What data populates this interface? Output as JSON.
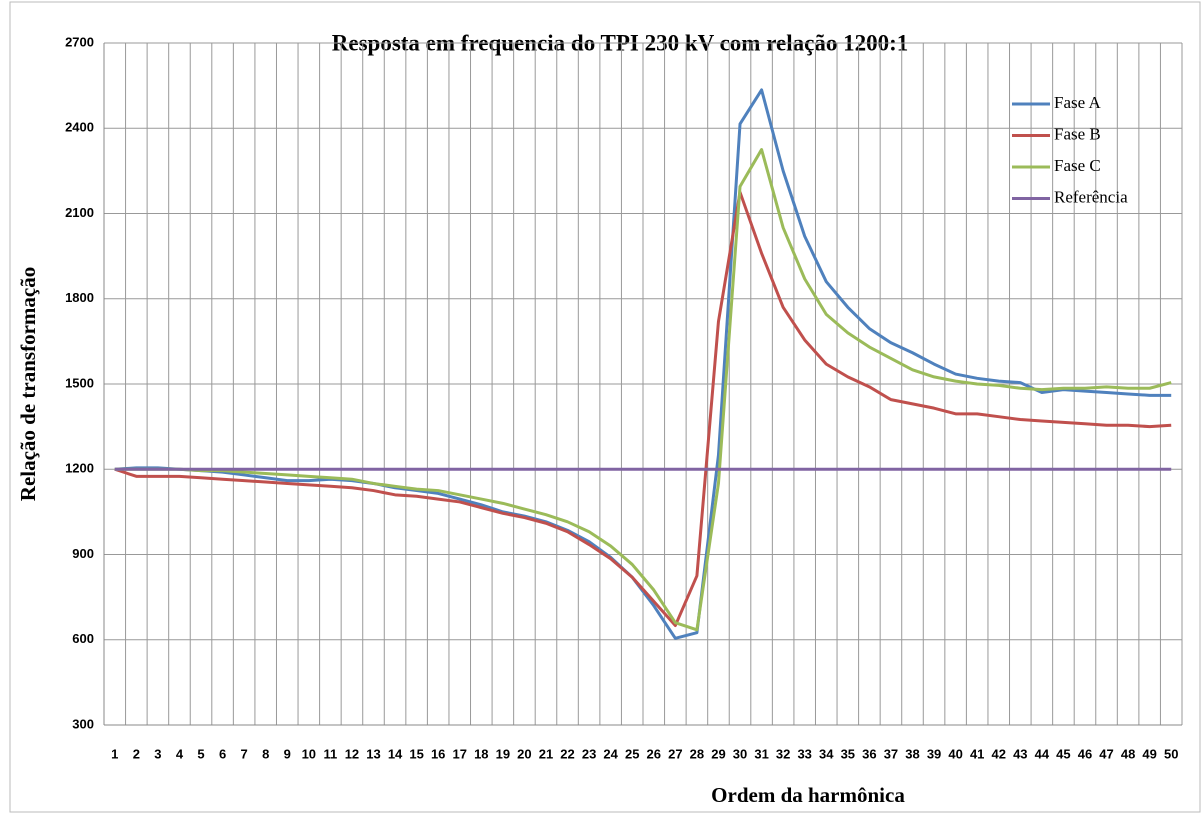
{
  "chart_data": {
    "type": "line",
    "title": "Resposta em frequencia do TPI 230 kV com relação 1200:1",
    "x_label": "Ordem da harmônica",
    "y_label": "Relação de transformação",
    "categories": [
      "1",
      "2",
      "3",
      "4",
      "5",
      "6",
      "7",
      "8",
      "9",
      "10",
      "11",
      "12",
      "13",
      "14",
      "15",
      "16",
      "17",
      "18",
      "19",
      "20",
      "21",
      "22",
      "23",
      "24",
      "25",
      "26",
      "27",
      "28",
      "29",
      "30",
      "31",
      "32",
      "33",
      "34",
      "35",
      "36",
      "37",
      "38",
      "39",
      "40",
      "41",
      "42",
      "43",
      "44",
      "45",
      "46",
      "47",
      "48",
      "49",
      "50"
    ],
    "ylim": [
      300,
      2700
    ],
    "yticks": [
      300,
      600,
      900,
      1200,
      1500,
      1800,
      2100,
      2400,
      2700
    ],
    "grid": true,
    "legend": "upper right",
    "series": [
      {
        "name": "Fase A",
        "color": "#4f81bd",
        "values": [
          1200,
          1205,
          1205,
          1200,
          1195,
          1190,
          1180,
          1170,
          1160,
          1160,
          1165,
          1160,
          1150,
          1135,
          1125,
          1115,
          1095,
          1075,
          1050,
          1035,
          1015,
          985,
          945,
          890,
          820,
          720,
          605,
          625,
          1250,
          2415,
          2535,
          2250,
          2020,
          1860,
          1770,
          1695,
          1645,
          1610,
          1570,
          1535,
          1520,
          1510,
          1505,
          1470,
          1480,
          1475,
          1470,
          1465,
          1460,
          1460
        ]
      },
      {
        "name": "Fase B",
        "color": "#c0504d",
        "values": [
          1200,
          1175,
          1175,
          1175,
          1170,
          1165,
          1160,
          1155,
          1150,
          1145,
          1140,
          1135,
          1125,
          1110,
          1105,
          1095,
          1085,
          1065,
          1045,
          1030,
          1010,
          980,
          935,
          885,
          820,
          735,
          650,
          825,
          1720,
          2175,
          1960,
          1770,
          1655,
          1570,
          1525,
          1490,
          1445,
          1430,
          1415,
          1395,
          1395,
          1385,
          1375,
          1370,
          1365,
          1360,
          1355,
          1355,
          1350,
          1355
        ]
      },
      {
        "name": "Fase C",
        "color": "#9bbb59",
        "values": [
          1200,
          1200,
          1200,
          1200,
          1195,
          1195,
          1190,
          1185,
          1180,
          1175,
          1170,
          1165,
          1150,
          1140,
          1130,
          1125,
          1110,
          1095,
          1080,
          1060,
          1040,
          1015,
          980,
          930,
          865,
          775,
          660,
          635,
          1150,
          2195,
          2325,
          2050,
          1870,
          1745,
          1680,
          1630,
          1590,
          1550,
          1525,
          1510,
          1500,
          1495,
          1485,
          1480,
          1485,
          1485,
          1490,
          1485,
          1485,
          1505
        ]
      },
      {
        "name": "Referência",
        "color": "#8064a2",
        "values": [
          1200,
          1200,
          1200,
          1200,
          1200,
          1200,
          1200,
          1200,
          1200,
          1200,
          1200,
          1200,
          1200,
          1200,
          1200,
          1200,
          1200,
          1200,
          1200,
          1200,
          1200,
          1200,
          1200,
          1200,
          1200,
          1200,
          1200,
          1200,
          1200,
          1200,
          1200,
          1200,
          1200,
          1200,
          1200,
          1200,
          1200,
          1200,
          1200,
          1200,
          1200,
          1200,
          1200,
          1200,
          1200,
          1200,
          1200,
          1200,
          1200,
          1200
        ]
      }
    ]
  }
}
